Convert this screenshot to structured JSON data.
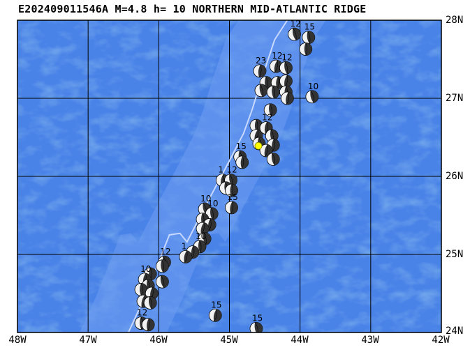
{
  "map": {
    "title": "E202409011546A M=4.8 h= 10 NORTHERN MID-ATLANTIC RIDGE",
    "extent": {
      "lon_min": -48,
      "lon_max": -42,
      "lat_min": 24,
      "lat_max": 28
    },
    "lat_labels": [
      "28N",
      "27N",
      "26N",
      "25N",
      "24N"
    ],
    "lat_values": [
      28,
      27,
      26,
      25,
      24
    ],
    "lon_labels": [
      "48W",
      "47W",
      "46W",
      "45W",
      "44W",
      "43W",
      "42W"
    ],
    "lon_values": [
      -48,
      -47,
      -46,
      -45,
      -44,
      -43,
      -42
    ],
    "colors": {
      "ocean_deep": "#2e66d6",
      "ocean_shallow": "#4a83e8",
      "ridge_axis": "#c8d8ff",
      "grid": "#000000",
      "epicenter": "#ffff00",
      "mechanism_dark": "#333333",
      "mechanism_light": "#f2f2f2"
    },
    "ridge_axis": [
      [
        -46.43,
        24.0
      ],
      [
        -46.2,
        24.45
      ],
      [
        -45.98,
        24.95
      ],
      [
        -45.85,
        25.25
      ],
      [
        -45.7,
        25.27
      ],
      [
        -45.6,
        25.16
      ],
      [
        -45.38,
        25.55
      ],
      [
        -45.0,
        26.2
      ],
      [
        -44.8,
        26.55
      ],
      [
        -44.68,
        26.85
      ],
      [
        -44.55,
        27.23
      ],
      [
        -44.36,
        27.75
      ],
      [
        -44.18,
        28.0
      ]
    ],
    "epicenter": {
      "lon": -44.59,
      "lat": 26.39
    },
    "mechanisms": [
      {
        "lon": -44.08,
        "lat": 27.82,
        "label": "12"
      },
      {
        "lon": -43.88,
        "lat": 27.78,
        "label": "15"
      },
      {
        "lon": -43.92,
        "lat": 27.63,
        "label": ""
      },
      {
        "lon": -44.57,
        "lat": 27.35,
        "label": "23"
      },
      {
        "lon": -44.34,
        "lat": 27.41,
        "label": "12"
      },
      {
        "lon": -44.2,
        "lat": 27.39,
        "label": "12"
      },
      {
        "lon": -44.48,
        "lat": 27.2,
        "label": ""
      },
      {
        "lon": -44.32,
        "lat": 27.2,
        "label": ""
      },
      {
        "lon": -44.2,
        "lat": 27.22,
        "label": ""
      },
      {
        "lon": -44.55,
        "lat": 27.1,
        "label": ""
      },
      {
        "lon": -44.38,
        "lat": 27.08,
        "label": ""
      },
      {
        "lon": -44.2,
        "lat": 27.08,
        "label": ""
      },
      {
        "lon": -44.18,
        "lat": 27.0,
        "label": ""
      },
      {
        "lon": -43.83,
        "lat": 27.02,
        "label": "10"
      },
      {
        "lon": -44.42,
        "lat": 26.85,
        "label": ""
      },
      {
        "lon": -44.62,
        "lat": 26.65,
        "label": ""
      },
      {
        "lon": -44.48,
        "lat": 26.62,
        "label": "12"
      },
      {
        "lon": -44.62,
        "lat": 26.52,
        "label": ""
      },
      {
        "lon": -44.4,
        "lat": 26.52,
        "label": ""
      },
      {
        "lon": -44.58,
        "lat": 26.42,
        "label": ""
      },
      {
        "lon": -44.38,
        "lat": 26.4,
        "label": ""
      },
      {
        "lon": -44.48,
        "lat": 26.33,
        "label": ""
      },
      {
        "lon": -44.38,
        "lat": 26.22,
        "label": ""
      },
      {
        "lon": -44.85,
        "lat": 26.25,
        "label": "15"
      },
      {
        "lon": -44.82,
        "lat": 26.18,
        "label": ""
      },
      {
        "lon": -45.1,
        "lat": 25.95,
        "label": "1"
      },
      {
        "lon": -44.98,
        "lat": 25.95,
        "label": "12"
      },
      {
        "lon": -45.05,
        "lat": 25.85,
        "label": ""
      },
      {
        "lon": -44.97,
        "lat": 25.82,
        "label": ""
      },
      {
        "lon": -44.97,
        "lat": 25.6,
        "label": "15"
      },
      {
        "lon": -45.35,
        "lat": 25.58,
        "label": "10"
      },
      {
        "lon": -45.25,
        "lat": 25.52,
        "label": "10"
      },
      {
        "lon": -45.38,
        "lat": 25.45,
        "label": ""
      },
      {
        "lon": -45.28,
        "lat": 25.38,
        "label": ""
      },
      {
        "lon": -45.38,
        "lat": 25.33,
        "label": ""
      },
      {
        "lon": -45.35,
        "lat": 25.2,
        "label": ""
      },
      {
        "lon": -45.42,
        "lat": 25.1,
        "label": "10"
      },
      {
        "lon": -45.52,
        "lat": 25.03,
        "label": ""
      },
      {
        "lon": -45.62,
        "lat": 24.97,
        "label": "1"
      },
      {
        "lon": -45.92,
        "lat": 24.9,
        "label": "12"
      },
      {
        "lon": -45.95,
        "lat": 24.85,
        "label": ""
      },
      {
        "lon": -46.12,
        "lat": 24.75,
        "label": ""
      },
      {
        "lon": -46.2,
        "lat": 24.68,
        "label": "10"
      },
      {
        "lon": -45.95,
        "lat": 24.65,
        "label": ""
      },
      {
        "lon": -46.15,
        "lat": 24.6,
        "label": ""
      },
      {
        "lon": -46.25,
        "lat": 24.55,
        "label": ""
      },
      {
        "lon": -46.1,
        "lat": 24.5,
        "label": ""
      },
      {
        "lon": -46.22,
        "lat": 24.4,
        "label": ""
      },
      {
        "lon": -46.12,
        "lat": 24.38,
        "label": ""
      },
      {
        "lon": -46.25,
        "lat": 24.12,
        "label": "12"
      },
      {
        "lon": -46.15,
        "lat": 24.1,
        "label": ""
      },
      {
        "lon": -45.2,
        "lat": 24.22,
        "label": "15"
      },
      {
        "lon": -44.62,
        "lat": 24.05,
        "label": "15"
      }
    ]
  }
}
